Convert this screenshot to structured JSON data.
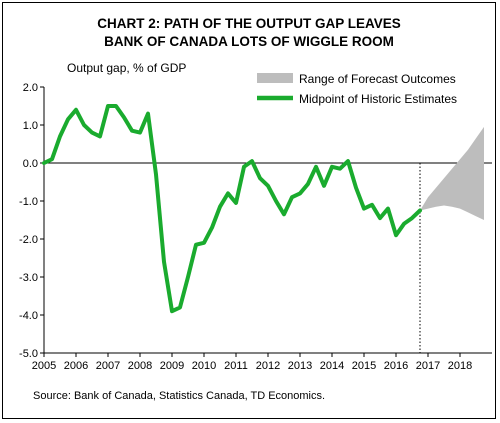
{
  "chart_data": {
    "type": "line",
    "title_lines": [
      "CHART 2: PATH OF THE OUTPUT GAP LEAVES",
      "BANK OF CANADA LOTS OF WIGGLE ROOM"
    ],
    "ylabel": "Output gap, % of GDP",
    "source": "Source: Bank of Canada, Statistics Canada, TD Economics.",
    "ylim": [
      -5.0,
      2.0
    ],
    "yticks": [
      "2.0",
      "1.0",
      "0.0",
      "-1.0",
      "-2.0",
      "-3.0",
      "-4.0",
      "-5.0"
    ],
    "ytick_values": [
      2,
      1,
      0,
      -1,
      -2,
      -3,
      -4,
      -5
    ],
    "xlim": [
      2005.0,
      2019.0
    ],
    "xticks": [
      "2005",
      "2006",
      "2007",
      "2008",
      "2009",
      "2010",
      "2011",
      "2012",
      "2013",
      "2014",
      "2015",
      "2016",
      "2017",
      "2018"
    ],
    "xtick_values": [
      2005.0,
      2006.0,
      2007.0,
      2008.0,
      2009.0,
      2010.0,
      2011.0,
      2012.0,
      2013.0,
      2014.0,
      2015.0,
      2016.0,
      2017.0,
      2018.0
    ],
    "forecast_divider_x": 2016.75,
    "legend_position": "top-right",
    "colors": {
      "midpoint": "#1aab2e",
      "range": "#bdbdbd",
      "zero_line": "#000000"
    },
    "series": [
      {
        "name": "Midpoint of Historic Estimates",
        "x": [
          2005.0,
          2005.25,
          2005.5,
          2005.75,
          2006.0,
          2006.25,
          2006.5,
          2006.75,
          2007.0,
          2007.25,
          2007.5,
          2007.75,
          2008.0,
          2008.25,
          2008.5,
          2008.75,
          2009.0,
          2009.25,
          2009.5,
          2009.75,
          2010.0,
          2010.25,
          2010.5,
          2010.75,
          2011.0,
          2011.25,
          2011.5,
          2011.75,
          2012.0,
          2012.25,
          2012.5,
          2012.75,
          2013.0,
          2013.25,
          2013.5,
          2013.75,
          2014.0,
          2014.25,
          2014.5,
          2014.75,
          2015.0,
          2015.25,
          2015.5,
          2015.75,
          2016.0,
          2016.25,
          2016.5,
          2016.75
        ],
        "values": [
          0.0,
          0.1,
          0.7,
          1.15,
          1.4,
          1.0,
          0.8,
          0.7,
          1.5,
          1.5,
          1.2,
          0.85,
          0.8,
          1.3,
          -0.3,
          -2.6,
          -3.9,
          -3.8,
          -3.0,
          -2.15,
          -2.1,
          -1.7,
          -1.15,
          -0.8,
          -1.05,
          -0.1,
          0.05,
          -0.4,
          -0.6,
          -1.0,
          -1.35,
          -0.9,
          -0.8,
          -0.55,
          -0.1,
          -0.6,
          -0.1,
          -0.15,
          0.05,
          -0.65,
          -1.2,
          -1.1,
          -1.45,
          -1.2,
          -1.9,
          -1.6,
          -1.45,
          -1.25
        ]
      },
      {
        "name": "Range of Forecast Outcomes",
        "x": [
          2016.75,
          2017.0,
          2017.25,
          2017.5,
          2017.75,
          2018.0,
          2018.25,
          2018.5,
          2018.75
        ],
        "lower": [
          -1.25,
          -1.2,
          -1.15,
          -1.12,
          -1.15,
          -1.2,
          -1.3,
          -1.4,
          -1.5
        ],
        "upper": [
          -1.25,
          -0.9,
          -0.65,
          -0.4,
          -0.15,
          0.1,
          0.35,
          0.65,
          0.95
        ]
      }
    ]
  }
}
